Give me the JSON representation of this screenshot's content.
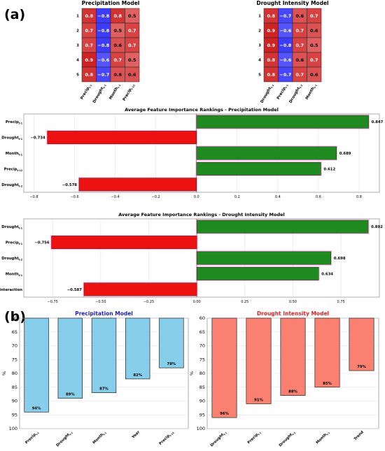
{
  "panel_labels": {
    "a": "(a)",
    "b": "(b)"
  },
  "colors": {
    "positive": "#1f8a1f",
    "negative": "#ee1111",
    "sky": "#87ceeb",
    "salmon": "#fa8072",
    "title_blue": "#1f1fb4",
    "title_red": "#d62728",
    "heat_blue": "#3b3bff",
    "heat_red": "#e8464a"
  },
  "chart_data": [
    {
      "type": "heatmap",
      "title": "Precipitation Model",
      "row_labels": [
        "1",
        "2",
        "3",
        "4",
        "5"
      ],
      "col_labels": [
        {
          "base": "Precip",
          "sub": "t-1"
        },
        {
          "base": "Drought",
          "sub": "t-1"
        },
        {
          "base": "Month",
          "sub": "t-1"
        },
        {
          "base": "Precip",
          "sub": "t-12"
        }
      ],
      "cells": [
        [
          "0.8",
          "−0.8",
          "0.8",
          "0.5"
        ],
        [
          "0.7",
          "−0.8",
          "0.5",
          "0.7"
        ],
        [
          "0.7",
          "−0.8",
          "0.6",
          "0.7"
        ],
        [
          "0.9",
          "−0.6",
          "0.7",
          "0.5"
        ],
        [
          "0.8",
          "−0.7",
          "0.6",
          "0.6"
        ]
      ],
      "values": [
        [
          0.8,
          -0.8,
          0.8,
          0.5
        ],
        [
          0.7,
          -0.8,
          0.5,
          0.7
        ],
        [
          0.7,
          -0.8,
          0.6,
          0.7
        ],
        [
          0.9,
          -0.6,
          0.7,
          0.5
        ],
        [
          0.8,
          -0.7,
          0.6,
          0.6
        ]
      ]
    },
    {
      "type": "heatmap",
      "title": "Drought Intensity Model",
      "row_labels": [
        "1",
        "2",
        "3",
        "4",
        "5"
      ],
      "col_labels": [
        {
          "base": "Drought",
          "sub": "t-1"
        },
        {
          "base": "Precip",
          "sub": "t-1"
        },
        {
          "base": "Drought",
          "sub": "t-2"
        },
        {
          "base": "Month",
          "sub": "t-1"
        }
      ],
      "cells": [
        [
          "0.8",
          "−0.7",
          "0.6",
          "0.7"
        ],
        [
          "0.9",
          "−0.6",
          "0.7",
          "0.6"
        ],
        [
          "0.9",
          "−0.8",
          "0.7",
          "0.5"
        ],
        [
          "0.8",
          "−0.6",
          "0.6",
          "0.7"
        ],
        [
          "0.8",
          "−0.7",
          "0.7",
          "0.6"
        ]
      ],
      "values": [
        [
          0.8,
          -0.7,
          0.6,
          0.7
        ],
        [
          0.9,
          -0.6,
          0.7,
          0.6
        ],
        [
          0.9,
          -0.8,
          0.7,
          0.5
        ],
        [
          0.8,
          -0.6,
          0.6,
          0.7
        ],
        [
          0.8,
          -0.7,
          0.7,
          0.6
        ]
      ]
    },
    {
      "type": "bar",
      "orientation": "horizontal",
      "title": "Average Feature Importance Rankings - Precipitation Model",
      "categories": [
        {
          "base": "Precip",
          "sub": "t-1"
        },
        {
          "base": "Drought",
          "sub": "t-1"
        },
        {
          "base": "Month",
          "sub": "t-1"
        },
        {
          "base": "Precip",
          "sub": "t-12"
        },
        {
          "base": "Drought",
          "sub": "t-2"
        }
      ],
      "values": [
        0.847,
        -0.734,
        0.689,
        0.612,
        -0.578
      ],
      "value_labels": [
        "0.847",
        "−0.734",
        "0.689",
        "0.612",
        "−0.578"
      ],
      "xlim": [
        -0.85,
        0.9
      ],
      "xticks": [
        -0.8,
        -0.6,
        -0.4,
        -0.2,
        0.0,
        0.2,
        0.4,
        0.6,
        0.8
      ],
      "xtick_labels": [
        "−0.8",
        "−0.6",
        "−0.4",
        "−0.2",
        "0.0",
        "0.2",
        "0.4",
        "0.6",
        "0.8"
      ],
      "grid": true
    },
    {
      "type": "bar",
      "orientation": "horizontal",
      "title": "Average Feature Importance Rankings - Drought Intensity Model",
      "categories": [
        {
          "base": "Drought",
          "sub": "t-1"
        },
        {
          "base": "Precip",
          "sub": "t-1"
        },
        {
          "base": "Drought",
          "sub": "t-2"
        },
        {
          "base": "Month",
          "sub": "t-1"
        },
        {
          "base": "Interaction",
          "sub": ""
        }
      ],
      "values": [
        0.892,
        -0.756,
        0.698,
        0.634,
        -0.587
      ],
      "value_labels": [
        "0.892",
        "−0.756",
        "0.698",
        "0.634",
        "−0.587"
      ],
      "xlim": [
        -0.9,
        0.95
      ],
      "xticks": [
        -0.75,
        -0.5,
        -0.25,
        0.0,
        0.25,
        0.5,
        0.75
      ],
      "xtick_labels": [
        "−0.75",
        "−0.50",
        "−0.25",
        "0.00",
        "0.25",
        "0.50",
        "0.75"
      ],
      "grid": true
    },
    {
      "type": "bar",
      "title": "Precipitation Model",
      "categories": [
        {
          "base": "Precip",
          "sub": "t-1"
        },
        {
          "base": "Drought",
          "sub": "t-1"
        },
        {
          "base": "Month",
          "sub": "t-1"
        },
        {
          "base": "Year",
          "sub": ""
        },
        {
          "base": "Precip",
          "sub": "t-12"
        }
      ],
      "values": [
        94,
        89,
        87,
        82,
        78
      ],
      "value_labels": [
        "94%",
        "89%",
        "87%",
        "82%",
        "78%"
      ],
      "ylabel": "%",
      "ylim": [
        60,
        100
      ],
      "y_inverted": true,
      "yticks": [
        60,
        65,
        70,
        75,
        80,
        85,
        90,
        95,
        100
      ],
      "ytick_labels": [
        "60",
        "65",
        "70",
        "75",
        "80",
        "85",
        "90",
        "95",
        "100"
      ],
      "grid": true
    },
    {
      "type": "bar",
      "title": "Drought Intensity Model",
      "categories": [
        {
          "base": "Drought",
          "sub": "t-1"
        },
        {
          "base": "Precip",
          "sub": "t-1"
        },
        {
          "base": "Drought",
          "sub": "t-2"
        },
        {
          "base": "Month",
          "sub": "t-1"
        },
        {
          "base": "Trend",
          "sub": ""
        }
      ],
      "values": [
        96,
        91,
        88,
        85,
        79
      ],
      "value_labels": [
        "96%",
        "91%",
        "88%",
        "85%",
        "79%"
      ],
      "ylabel": "%",
      "ylim": [
        60,
        100
      ],
      "y_inverted": true,
      "yticks": [
        60,
        65,
        70,
        75,
        80,
        85,
        90,
        95,
        100
      ],
      "ytick_labels": [
        "60",
        "65",
        "70",
        "75",
        "80",
        "85",
        "90",
        "95",
        "100"
      ],
      "grid": true
    }
  ]
}
